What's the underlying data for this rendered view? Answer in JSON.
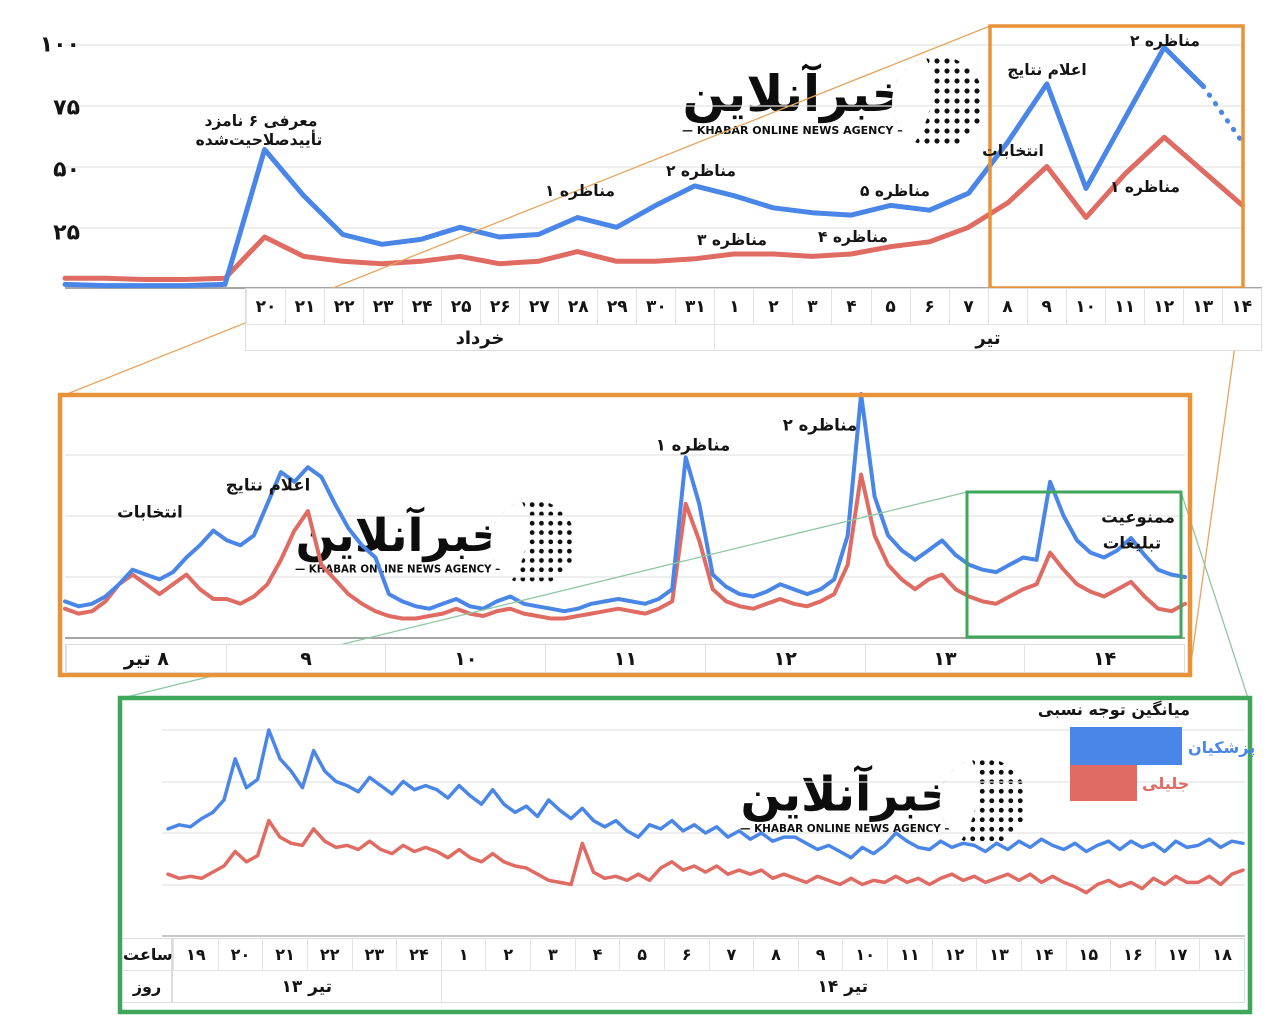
{
  "watermark": {
    "brand_fa": "خبرآنلاین",
    "brand_en": "— KHABAR ONLINE NEWS AGENCY —"
  },
  "colors": {
    "pezeshkian": "#4a86e8",
    "jalili": "#df6b63",
    "box_orange": "#e8923a",
    "box_green": "#3fa75c"
  },
  "top_chart": {
    "y_ticks": [
      "۱۰۰",
      "۷۵",
      "۵۰",
      "۲۵"
    ],
    "day_labels": [
      "۲۰",
      "۲۱",
      "۲۲",
      "۲۳",
      "۲۴",
      "۲۵",
      "۲۶",
      "۲۷",
      "۲۸",
      "۲۹",
      "۳۰",
      "۳۱",
      "۱",
      "۲",
      "۳",
      "۴",
      "۵",
      "۶",
      "۷",
      "۸",
      "۹",
      "۱۰",
      "۱۱",
      "۱۲",
      "۱۳",
      "۱۴"
    ],
    "month_labels": [
      "خرداد",
      "تیر"
    ],
    "annotations": {
      "candidates_line1": "معرفی ۶ نامزد",
      "candidates_line2": "تأییدصلاحیت‌شده",
      "debate1": "مناظره ۱",
      "debate2": "مناظره ۲",
      "debate3": "مناظره ۳",
      "debate4": "مناظره ۴",
      "debate5": "مناظره ۵",
      "election": "انتخابات",
      "results": "اعلام نتایج",
      "r2_debate1": "مناظره ۱",
      "r2_debate2": "مناظره ۲"
    }
  },
  "middle_chart": {
    "x_labels": [
      "۸ تیر",
      "۹",
      "۱۰",
      "۱۱",
      "۱۲",
      "۱۳",
      "۱۴"
    ],
    "annotations": {
      "election": "انتخابات",
      "results": "اعلام نتایج",
      "debate1": "مناظره ۱",
      "debate2": "مناظره ۲",
      "ban_line1": "ممنوعیت",
      "ban_line2": "تبلیغات"
    }
  },
  "bottom_chart": {
    "row_headers": {
      "hour": "ساعت",
      "day": "روز"
    },
    "hour_labels": [
      "۱۹",
      "۲۰",
      "۲۱",
      "۲۲",
      "۲۳",
      "۲۴",
      "۱",
      "۲",
      "۳",
      "۴",
      "۵",
      "۶",
      "۷",
      "۸",
      "۹",
      "۱۰",
      "۱۱",
      "۱۲",
      "۱۳",
      "۱۴",
      "۱۵",
      "۱۶",
      "۱۷",
      "۱۸"
    ],
    "day_labels": [
      "تیر ۱۳",
      "تیر ۱۴"
    ],
    "legend": {
      "title": "میانگین توجه نسبی",
      "pezeshkian": "پزشکیان",
      "jalili": "جلیلی"
    }
  },
  "chart_data": [
    {
      "type": "line",
      "title": "",
      "ylim": [
        0,
        100
      ],
      "y_ticks": [
        25,
        50,
        75,
        100
      ],
      "x_categories": [
        "۲۰ خرداد",
        "۲۱ خرداد",
        "۲۲ خرداد",
        "۲۳ خرداد",
        "۲۴ خرداد",
        "۲۵ خرداد",
        "۲۶ خرداد",
        "۲۷ خرداد",
        "۲۸ خرداد",
        "۲۹ خرداد",
        "۳۰ خرداد",
        "۳۱ خرداد",
        "۱ تیر",
        "۲ تیر",
        "۳ تیر",
        "۴ تیر",
        "۵ تیر",
        "۶ تیر",
        "۷ تیر",
        "۸ تیر",
        "۹ تیر",
        "۱۰ تیر",
        "۱۱ تیر",
        "۱۲ تیر",
        "۱۳ تیر",
        "۱۴ تیر"
      ],
      "series": [
        {
          "name": "پزشکیان",
          "color": "#4a86e8",
          "lead_values": [
            1.5,
            1,
            1,
            1,
            1.5
          ],
          "values": [
            57,
            38,
            22,
            18,
            20,
            25,
            21,
            22,
            29,
            25,
            34,
            42,
            38,
            33,
            31,
            30,
            34,
            32,
            39,
            60,
            84,
            41,
            70,
            99,
            83,
            60
          ],
          "dashed_tail_from": "۱۳ تیر"
        },
        {
          "name": "جلیلی",
          "color": "#df6b63",
          "lead_values": [
            4,
            4,
            3.5,
            3.5,
            4
          ],
          "values": [
            21,
            13,
            11,
            10,
            11,
            13,
            10,
            11,
            15,
            11,
            11,
            12,
            14,
            14,
            13,
            14,
            17,
            19,
            25,
            35,
            50,
            29,
            47,
            62,
            48,
            34
          ]
        }
      ],
      "annotations": [
        {
          "label": "معرفی ۶ نامزد تأییدصلاحیت‌شده",
          "x": "۲۰ خرداد"
        },
        {
          "label": "مناظره ۱",
          "x": "۲۸ خرداد"
        },
        {
          "label": "مناظره ۲",
          "x": "۳۱ خرداد"
        },
        {
          "label": "مناظره ۳",
          "x": "۱ تیر"
        },
        {
          "label": "مناظره ۴",
          "x": "۴ تیر"
        },
        {
          "label": "مناظره ۵",
          "x": "۵ تیر"
        },
        {
          "label": "انتخابات",
          "x": "۸ تیر"
        },
        {
          "label": "اعلام نتایج",
          "x": "۹ تیر"
        },
        {
          "label": "مناظره ۱",
          "x": "۱۱ تیر"
        },
        {
          "label": "مناظره ۲",
          "x": "۱۲ تیر"
        }
      ]
    },
    {
      "type": "line",
      "ylim": [
        0,
        100
      ],
      "days": [
        "۸ تیر",
        "۹",
        "۱۰",
        "۱۱",
        "۱۲",
        "۱۳",
        "۱۴"
      ],
      "points_per_day": 12,
      "series": [
        {
          "name": "پزشکیان",
          "color": "#4a86e8",
          "values": [
            15,
            13,
            14,
            17,
            22,
            28,
            26,
            24,
            27,
            33,
            38,
            44,
            40,
            38,
            42,
            55,
            68,
            64,
            70,
            66,
            55,
            45,
            38,
            33,
            18,
            15,
            13,
            12,
            14,
            16,
            13,
            12,
            15,
            17,
            14,
            13,
            12,
            11,
            12,
            14,
            15,
            16,
            15,
            14,
            16,
            20,
            74,
            55,
            26,
            21,
            18,
            17,
            19,
            22,
            20,
            18,
            20,
            24,
            42,
            100,
            58,
            42,
            36,
            32,
            36,
            40,
            34,
            30,
            28,
            27,
            30,
            33,
            32,
            64,
            50,
            40,
            35,
            33,
            36,
            41,
            34,
            28,
            26,
            25
          ]
        },
        {
          "name": "جلیلی",
          "color": "#df6b63",
          "values": [
            12,
            10,
            11,
            15,
            22,
            26,
            22,
            18,
            22,
            26,
            20,
            16,
            16,
            14,
            17,
            22,
            32,
            44,
            52,
            30,
            24,
            18,
            14,
            11,
            9,
            8,
            8,
            9,
            10,
            12,
            10,
            9,
            11,
            12,
            10,
            9,
            8,
            8,
            9,
            10,
            11,
            12,
            11,
            10,
            12,
            15,
            55,
            40,
            20,
            15,
            13,
            12,
            14,
            16,
            14,
            13,
            15,
            18,
            30,
            67,
            42,
            30,
            24,
            20,
            24,
            26,
            20,
            17,
            15,
            14,
            17,
            20,
            22,
            35,
            28,
            22,
            19,
            17,
            20,
            23,
            17,
            12,
            11,
            14
          ]
        }
      ],
      "annotations": [
        {
          "label": "انتخابات",
          "x": "۸ تیر"
        },
        {
          "label": "اعلام نتایج",
          "x": "۹ تیر"
        },
        {
          "label": "مناظره ۱",
          "x": "۱۱ تیر"
        },
        {
          "label": "مناظره ۲",
          "x": "۱۲ تیر"
        },
        {
          "label": "ممنوعیت تبلیغات",
          "x": "۱۳–۱۴ تیر"
        }
      ]
    },
    {
      "type": "line",
      "ylim": [
        0,
        100
      ],
      "hours": [
        "۱۹",
        "۲۰",
        "۲۱",
        "۲۲",
        "۲۳",
        "۲۴",
        "۱",
        "۲",
        "۳",
        "۴",
        "۵",
        "۶",
        "۷",
        "۸",
        "۹",
        "۱۰",
        "۱۱",
        "۱۲",
        "۱۳",
        "۱۴",
        "۱۵",
        "۱۶",
        "۱۷",
        "۱۸"
      ],
      "day_spans": [
        {
          "day": "تیر ۱۳",
          "hours": 6
        },
        {
          "day": "تیر ۱۴",
          "hours": 18
        }
      ],
      "points_per_hour": 4,
      "series": [
        {
          "name": "پزشکیان",
          "color": "#4a86e8",
          "values": [
            52,
            54,
            53,
            57,
            60,
            66,
            86,
            72,
            76,
            100,
            86,
            80,
            72,
            90,
            80,
            75,
            73,
            70,
            77,
            73,
            69,
            75,
            71,
            73,
            71,
            67,
            73,
            68,
            64,
            71,
            64,
            60,
            63,
            58,
            66,
            61,
            57,
            62,
            56,
            53,
            56,
            51,
            48,
            54,
            52,
            56,
            51,
            54,
            50,
            53,
            48,
            51,
            47,
            50,
            46,
            48,
            48,
            45,
            42,
            44,
            41,
            38,
            43,
            40,
            44,
            50,
            46,
            43,
            42,
            46,
            43,
            45,
            44,
            41,
            45,
            42,
            46,
            43,
            47,
            44,
            42,
            45,
            41,
            44,
            46,
            42,
            46,
            43,
            45,
            41,
            46,
            43,
            44,
            47,
            43,
            46,
            45
          ]
        },
        {
          "name": "جلیلی",
          "color": "#df6b63",
          "values": [
            30,
            28,
            29,
            28,
            31,
            34,
            41,
            36,
            39,
            56,
            48,
            45,
            44,
            52,
            46,
            43,
            44,
            42,
            46,
            42,
            40,
            44,
            41,
            43,
            41,
            38,
            42,
            38,
            36,
            40,
            36,
            34,
            33,
            30,
            27,
            26,
            25,
            45,
            31,
            28,
            29,
            27,
            30,
            27,
            33,
            36,
            32,
            34,
            31,
            34,
            30,
            32,
            30,
            32,
            28,
            30,
            28,
            26,
            29,
            27,
            25,
            28,
            25,
            27,
            26,
            29,
            26,
            28,
            25,
            28,
            30,
            27,
            29,
            26,
            28,
            30,
            27,
            30,
            26,
            29,
            26,
            24,
            21,
            25,
            27,
            24,
            26,
            23,
            28,
            25,
            29,
            26,
            26,
            29,
            25,
            30,
            32
          ]
        }
      ],
      "legend_average_bars": {
        "pezeshkian": 100,
        "jalili": 60
      }
    }
  ]
}
